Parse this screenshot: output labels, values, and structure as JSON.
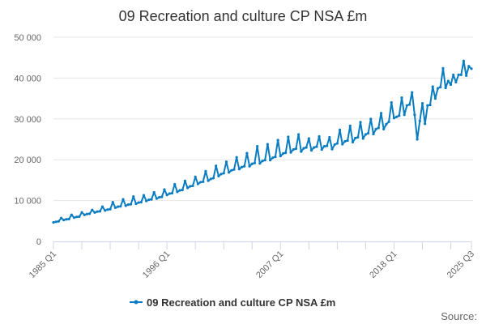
{
  "chart_data": {
    "type": "line",
    "title": "09 Recreation and culture CP NSA £m",
    "xlabel": "",
    "ylabel": "",
    "ylim": [
      0,
      50000
    ],
    "yticks": [
      0,
      10000,
      20000,
      30000,
      40000,
      50000
    ],
    "ytick_labels": [
      "0",
      "10 000",
      "20 000",
      "30 000",
      "40 000",
      "50 000"
    ],
    "x_start": "1985 Q1",
    "x_end": "2025 Q3",
    "xtick_labels": [
      {
        "label": "1985 Q1",
        "index": 0
      },
      {
        "label": "1996 Q1",
        "index": 44
      },
      {
        "label": "2007 Q1",
        "index": 88
      },
      {
        "label": "2018 Q1",
        "index": 132
      },
      {
        "label": "2025 Q3",
        "index": 162
      }
    ],
    "grid": true,
    "legend_position": "bottom-center",
    "series": [
      {
        "name": "09 Recreation and culture CP NSA £m",
        "color": "#0a7dc2",
        "values": [
          4650,
          4800,
          4900,
          5700,
          5240,
          5400,
          5450,
          6500,
          5820,
          6000,
          6060,
          7100,
          6500,
          6700,
          6770,
          7700,
          7080,
          7300,
          7370,
          8500,
          7570,
          7800,
          7880,
          9600,
          8250,
          8500,
          8580,
          10300,
          8730,
          9000,
          9090,
          11000,
          9220,
          9500,
          9600,
          11300,
          9900,
          10200,
          10300,
          12000,
          10480,
          10800,
          10900,
          12700,
          11350,
          11700,
          11800,
          14000,
          12130,
          12500,
          12600,
          14800,
          13100,
          13500,
          13600,
          15800,
          14070,
          14500,
          14600,
          17200,
          14850,
          15300,
          15500,
          18500,
          16000,
          16500,
          16700,
          19500,
          16900,
          17400,
          17600,
          20600,
          17700,
          18200,
          18400,
          21600,
          18400,
          19000,
          19200,
          23300,
          19100,
          19700,
          19900,
          23800,
          19900,
          20500,
          20700,
          24800,
          20900,
          21500,
          21700,
          25600,
          21800,
          22500,
          22700,
          26200,
          22000,
          22800,
          23000,
          25200,
          22300,
          23000,
          23200,
          25700,
          22500,
          23300,
          23400,
          25500,
          22600,
          23700,
          24000,
          27300,
          23800,
          24500,
          24700,
          28300,
          24300,
          25300,
          25500,
          29200,
          25200,
          26200,
          26500,
          30000,
          26300,
          27500,
          27800,
          31400,
          27500,
          28700,
          29300,
          34000,
          30200,
          30500,
          30800,
          35200,
          31000,
          33300,
          33500,
          36500,
          31000,
          25000,
          29500,
          33800,
          28800,
          33300,
          33400,
          37900,
          35000,
          37500,
          37800,
          42400,
          37600,
          39300,
          38400,
          40800,
          39000,
          40800,
          40800,
          44200,
          40600,
          42900,
          42300
        ]
      }
    ],
    "source_label": "Source:"
  }
}
